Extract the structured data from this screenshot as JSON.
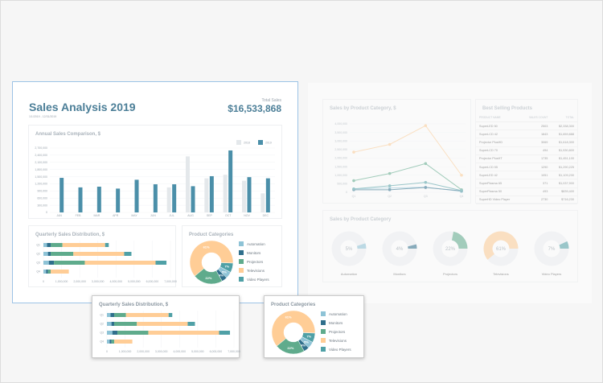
{
  "header": {
    "title": "Sales Analysis 2019",
    "date_range": "1/1/2019 - 12/31/2019",
    "total_label": "Total Sales",
    "total_value": "$16,533,868"
  },
  "colors": {
    "accent": "#4b8fa9",
    "bar_2018": "#e4e8eb",
    "bar_2019": "#4b8fa9",
    "Automation": "#8ec3d6",
    "Monitors": "#2f6f8c",
    "Projectors": "#5fab8c",
    "Televisions": "#ffcd96",
    "Video Players": "#4fa0a6",
    "donut_track": "#eef0f4"
  },
  "categories": [
    "Automation",
    "Monitors",
    "Projectors",
    "Televisions",
    "Video Players"
  ],
  "chart_data": [
    {
      "id": "annual",
      "type": "bar",
      "title": "Annual Sales Comparison, $",
      "categories": [
        "JAN",
        "FEB",
        "MAR",
        "APR",
        "MAY",
        "JUN",
        "JUL",
        "AUG",
        "SEP",
        "OCT",
        "NOV",
        "DEC"
      ],
      "series": [
        {
          "name": "2018",
          "values": [
            0,
            0,
            0,
            0,
            0,
            0,
            1050000,
            2350000,
            1430000,
            1580000,
            1330000,
            800000
          ]
        },
        {
          "name": "2019",
          "values": [
            1450000,
            1050000,
            1080000,
            1000000,
            1370000,
            1180000,
            1180000,
            1100000,
            1520000,
            2600000,
            1480000,
            1430000
          ]
        }
      ],
      "ylim": [
        0,
        2700000
      ],
      "yticks": [
        "0",
        "300,000",
        "600,000",
        "900,000",
        "1,200,000",
        "1,500,000",
        "1,800,000",
        "2,100,000",
        "2,400,000",
        "2,700,000"
      ],
      "grid": true,
      "legend": "top-right"
    },
    {
      "id": "quarterly",
      "type": "bar",
      "orientation": "horizontal",
      "stacked": true,
      "title": "Quarterly Sales Distribution, $",
      "categories": [
        "Q1",
        "Q2",
        "Q3",
        "Q4"
      ],
      "series": [
        {
          "name": "Automation",
          "values": [
            200000,
            250000,
            300000,
            150000
          ]
        },
        {
          "name": "Monitors",
          "values": [
            200000,
            150000,
            280000,
            100000
          ]
        },
        {
          "name": "Projectors",
          "values": [
            650000,
            1250000,
            1700000,
            150000
          ]
        },
        {
          "name": "Televisions",
          "values": [
            2350000,
            2800000,
            3900000,
            1000000
          ]
        },
        {
          "name": "Video Players",
          "values": [
            200000,
            400000,
            600000,
            0
          ]
        }
      ],
      "xlim": [
        0,
        7000000
      ],
      "xticks": [
        "0",
        "1,000,000",
        "2,000,000",
        "3,000,000",
        "4,000,000",
        "5,000,000",
        "6,000,000",
        "7,000,000"
      ]
    },
    {
      "id": "categories_pie",
      "type": "pie",
      "title": "Product Categories",
      "labels": [
        "Automation",
        "Monitors",
        "Projectors",
        "Televisions",
        "Video Players"
      ],
      "values": [
        5,
        4,
        22,
        61,
        7
      ],
      "value_labels": [
        "5%",
        "4%",
        "22%",
        "61%",
        "7%"
      ]
    },
    {
      "id": "category_lines",
      "type": "line",
      "title": "Sales by Product Category, $",
      "categories": [
        "Q1",
        "Q2",
        "Q3",
        "Q4"
      ],
      "series": [
        {
          "name": "Automation",
          "values": [
            200000,
            250000,
            300000,
            50000
          ]
        },
        {
          "name": "Monitors",
          "values": [
            150000,
            150000,
            280000,
            80000
          ]
        },
        {
          "name": "Projectors",
          "values": [
            680000,
            1100000,
            1680000,
            150000
          ]
        },
        {
          "name": "Televisions",
          "values": [
            2350000,
            2800000,
            3900000,
            1000000
          ]
        },
        {
          "name": "Video Players",
          "values": [
            200000,
            380000,
            580000,
            100000
          ]
        }
      ],
      "ylim": [
        0,
        4000000
      ],
      "yticks": [
        "0",
        "500,000",
        "1,000,000",
        "1,500,000",
        "2,000,000",
        "2,500,000",
        "3,000,000",
        "3,500,000",
        "4,000,000"
      ]
    },
    {
      "id": "category_donuts",
      "type": "pie",
      "title": "Sales by Product Category",
      "labels": [
        "Automation",
        "Monitors",
        "Projectors",
        "Televisions",
        "Video Players"
      ],
      "values": [
        5,
        4,
        22,
        61,
        7
      ],
      "value_labels": [
        "5%",
        "4%",
        "22%",
        "61%",
        "7%"
      ]
    }
  ],
  "best_selling": {
    "title": "Best Selling Products",
    "columns": [
      "PRODUCT NAME",
      "SALES COUNT",
      "TOTAL"
    ],
    "rows": [
      [
        "SuperLED 50",
        "2503",
        "$2,338,300"
      ],
      [
        "SuperLCD 42",
        "1843",
        "$1,659,888"
      ],
      [
        "Projector PlusHD",
        "3069",
        "$1,618,300"
      ],
      [
        "SuperLCD 70",
        "494",
        "$1,530,800"
      ],
      [
        "Projector PlusHT",
        "1735",
        "$1,451,100"
      ],
      [
        "SuperLCD 55",
        "1290",
        "$1,290,225"
      ],
      [
        "SuperLED 42",
        "1051",
        "$1,109,230"
      ],
      [
        "SuperPlasma 65",
        "371",
        "$1,037,900"
      ],
      [
        "SuperPlasma 50",
        "493",
        "$839,400"
      ],
      [
        "SuperHD Video Player",
        "2730",
        "$716,230"
      ]
    ]
  }
}
